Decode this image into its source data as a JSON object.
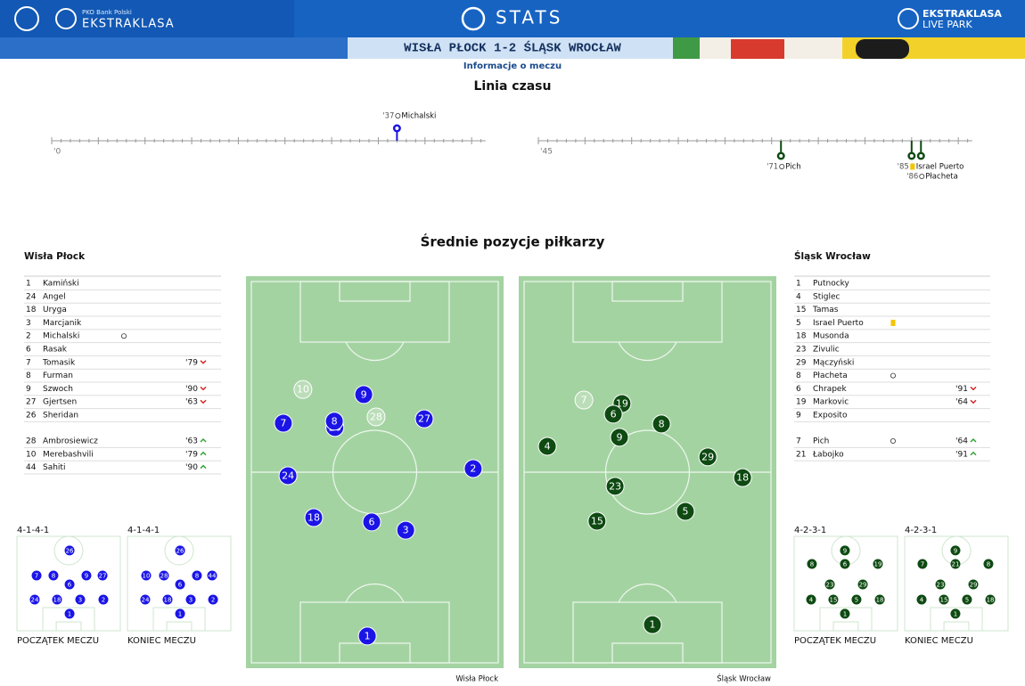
{
  "header": {
    "sponsor": "PKO Bank Polski",
    "brand": "EKSTRAKLASA",
    "section": "STATS",
    "right_brand": "EKSTRAKLASA",
    "right_sub": "LIVE PARK",
    "match": "WISŁA PŁOCK 1-2 ŚLĄSK WROCŁAW",
    "subtitle": "Informacje o meczu"
  },
  "timeline": {
    "title": "Linia czasu",
    "halves": [
      {
        "label": "'0",
        "range": [
          0,
          46.5
        ]
      },
      {
        "label": "'45",
        "range": [
          45,
          91.5
        ]
      }
    ],
    "events": [
      {
        "minute": 37,
        "label": "'37",
        "player": "Michalski",
        "kind": "goal",
        "team": 0
      },
      {
        "minute": 71,
        "label": "'71",
        "player": "Pich",
        "kind": "goal",
        "team": 1
      },
      {
        "minute": 85,
        "label": "'85",
        "player": "Israel Puerto",
        "kind": "yellow",
        "team": 1
      },
      {
        "minute": 86,
        "label": "'86",
        "player": "Płacheta",
        "kind": "goal",
        "team": 1
      }
    ]
  },
  "positions": {
    "title": "Średnie pozycje piłkarzy"
  },
  "teams": [
    {
      "name": "Wisła Płock",
      "color": "#1a14e6",
      "starters": [
        {
          "number": "1",
          "name": "Kamiński"
        },
        {
          "number": "24",
          "name": "Angel"
        },
        {
          "number": "18",
          "name": "Uryga"
        },
        {
          "number": "3",
          "name": "Marcjanik"
        },
        {
          "number": "2",
          "name": "Michalski",
          "event": "goal"
        },
        {
          "number": "6",
          "name": "Rasak"
        },
        {
          "number": "7",
          "name": "Tomasik",
          "sub": "'79",
          "dir": "out"
        },
        {
          "number": "8",
          "name": "Furman"
        },
        {
          "number": "9",
          "name": "Szwoch",
          "sub": "'90",
          "dir": "out"
        },
        {
          "number": "27",
          "name": "Gjertsen",
          "sub": "'63",
          "dir": "out"
        },
        {
          "number": "26",
          "name": "Sheridan"
        }
      ],
      "subs": [
        {
          "number": "28",
          "name": "Ambrosiewicz",
          "sub": "'63",
          "dir": "in"
        },
        {
          "number": "10",
          "name": "Merebashvili",
          "sub": "'79",
          "dir": "in"
        },
        {
          "number": "44",
          "name": "Sahiti",
          "sub": "'90",
          "dir": "in"
        }
      ],
      "pitch_caption": "Wisła Płock",
      "average": [
        {
          "n": "10",
          "x": 22.1,
          "y": 28.9,
          "faded": true
        },
        {
          "n": "9",
          "x": 45.7,
          "y": 30.2
        },
        {
          "n": "7",
          "x": 14.5,
          "y": 37.5
        },
        {
          "n": "26",
          "x": 34.5,
          "y": 38.6
        },
        {
          "n": "8",
          "x": 34.3,
          "y": 37.0
        },
        {
          "n": "28",
          "x": 50.5,
          "y": 35.9,
          "faded": true
        },
        {
          "n": "27",
          "x": 69.2,
          "y": 36.4
        },
        {
          "n": "24",
          "x": 16.3,
          "y": 50.9
        },
        {
          "n": "2",
          "x": 88.2,
          "y": 49.1
        },
        {
          "n": "18",
          "x": 26.3,
          "y": 61.6
        },
        {
          "n": "6",
          "x": 48.8,
          "y": 62.7
        },
        {
          "n": "3",
          "x": 62.0,
          "y": 64.8
        },
        {
          "n": "1",
          "x": 47.1,
          "y": 91.8
        }
      ],
      "formations": [
        {
          "label": "4-1-4-1",
          "caption": "POCZĄTEK MECZU",
          "players": [
            {
              "n": "26",
              "x": 50.9,
              "y": 15
            },
            {
              "n": "7",
              "x": 19,
              "y": 41.5
            },
            {
              "n": "8",
              "x": 35.3,
              "y": 41.5
            },
            {
              "n": "9",
              "x": 67.2,
              "y": 41.5
            },
            {
              "n": "27",
              "x": 82.8,
              "y": 41.5
            },
            {
              "n": "6",
              "x": 50.9,
              "y": 50.9
            },
            {
              "n": "24",
              "x": 17.2,
              "y": 67
            },
            {
              "n": "18",
              "x": 38.8,
              "y": 67
            },
            {
              "n": "3",
              "x": 61.2,
              "y": 67
            },
            {
              "n": "2",
              "x": 83.6,
              "y": 67
            },
            {
              "n": "1",
              "x": 50.9,
              "y": 82
            }
          ]
        },
        {
          "label": "4-1-4-1",
          "caption": "KONIEC MECZU",
          "players": [
            {
              "n": "26",
              "x": 50.9,
              "y": 15
            },
            {
              "n": "10",
              "x": 18.1,
              "y": 41.5
            },
            {
              "n": "28",
              "x": 35.3,
              "y": 41.5
            },
            {
              "n": "8",
              "x": 67.2,
              "y": 41.5
            },
            {
              "n": "44",
              "x": 81.9,
              "y": 41.5
            },
            {
              "n": "6",
              "x": 50.9,
              "y": 50.9
            },
            {
              "n": "24",
              "x": 17.2,
              "y": 67
            },
            {
              "n": "18",
              "x": 38.8,
              "y": 67
            },
            {
              "n": "3",
              "x": 61.2,
              "y": 67
            },
            {
              "n": "2",
              "x": 82.8,
              "y": 67
            },
            {
              "n": "1",
              "x": 50.9,
              "y": 82
            }
          ]
        }
      ]
    },
    {
      "name": "Śląsk Wrocław",
      "color": "#0e4a12",
      "starters": [
        {
          "number": "1",
          "name": "Putnocky"
        },
        {
          "number": "4",
          "name": "Stiglec"
        },
        {
          "number": "15",
          "name": "Tamas"
        },
        {
          "number": "5",
          "name": "Israel Puerto",
          "event": "yellow"
        },
        {
          "number": "18",
          "name": "Musonda"
        },
        {
          "number": "23",
          "name": "Zivulic"
        },
        {
          "number": "29",
          "name": "Mączyński"
        },
        {
          "number": "8",
          "name": "Płacheta",
          "event": "goal"
        },
        {
          "number": "6",
          "name": "Chrapek",
          "sub": "'91",
          "dir": "out"
        },
        {
          "number": "19",
          "name": "Markovic",
          "sub": "'64",
          "dir": "out"
        },
        {
          "number": "9",
          "name": "Exposito"
        }
      ],
      "subs": [
        {
          "number": "7",
          "name": "Pich",
          "event": "goal",
          "sub": "'64",
          "dir": "in"
        },
        {
          "number": "21",
          "name": "Łabojko",
          "sub": "'91",
          "dir": "in"
        }
      ],
      "pitch_caption": "Śląsk Wrocław",
      "average": [
        {
          "n": "7",
          "x": 25.3,
          "y": 31.6,
          "faded": true
        },
        {
          "n": "19",
          "x": 40.1,
          "y": 32.5
        },
        {
          "n": "6",
          "x": 36.7,
          "y": 35.2
        },
        {
          "n": "8",
          "x": 55.4,
          "y": 37.7
        },
        {
          "n": "9",
          "x": 39.1,
          "y": 41.1
        },
        {
          "n": "4",
          "x": 11.1,
          "y": 43.4
        },
        {
          "n": "29",
          "x": 73.4,
          "y": 46.1
        },
        {
          "n": "18",
          "x": 86.9,
          "y": 51.4
        },
        {
          "n": "23",
          "x": 37.4,
          "y": 53.6
        },
        {
          "n": "5",
          "x": 64.7,
          "y": 60.0
        },
        {
          "n": "15",
          "x": 30.4,
          "y": 62.5
        },
        {
          "n": "1",
          "x": 51.9,
          "y": 88.9
        }
      ],
      "formations": [
        {
          "label": "4-2-3-1",
          "caption": "POCZĄTEK MECZU",
          "players": [
            {
              "n": "9",
              "x": 49.1,
              "y": 15
            },
            {
              "n": "8",
              "x": 17.2,
              "y": 29.2
            },
            {
              "n": "6",
              "x": 49.1,
              "y": 29.2
            },
            {
              "n": "19",
              "x": 81,
              "y": 29.2
            },
            {
              "n": "23",
              "x": 34.5,
              "y": 50.9
            },
            {
              "n": "29",
              "x": 66.4,
              "y": 50.9
            },
            {
              "n": "4",
              "x": 16.4,
              "y": 67
            },
            {
              "n": "15",
              "x": 37.9,
              "y": 67
            },
            {
              "n": "5",
              "x": 60.3,
              "y": 67
            },
            {
              "n": "18",
              "x": 82.8,
              "y": 67
            },
            {
              "n": "1",
              "x": 49.1,
              "y": 82
            }
          ]
        },
        {
          "label": "4-2-3-1",
          "caption": "KONIEC MECZU",
          "players": [
            {
              "n": "9",
              "x": 49.1,
              "y": 15
            },
            {
              "n": "7",
              "x": 17.2,
              "y": 29.2
            },
            {
              "n": "21",
              "x": 49.1,
              "y": 29.2
            },
            {
              "n": "8",
              "x": 81,
              "y": 29.2
            },
            {
              "n": "23",
              "x": 34.5,
              "y": 50.9
            },
            {
              "n": "29",
              "x": 66.4,
              "y": 50.9
            },
            {
              "n": "4",
              "x": 16.4,
              "y": 67
            },
            {
              "n": "15",
              "x": 37.9,
              "y": 67
            },
            {
              "n": "5",
              "x": 60.3,
              "y": 67
            },
            {
              "n": "18",
              "x": 82.8,
              "y": 67
            },
            {
              "n": "1",
              "x": 49.1,
              "y": 82
            }
          ]
        }
      ]
    }
  ]
}
